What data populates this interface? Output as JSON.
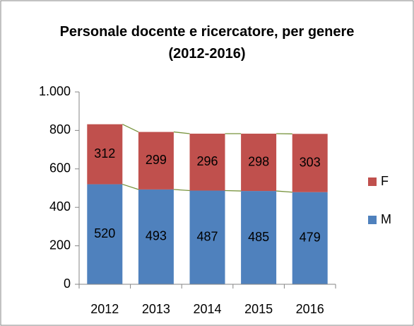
{
  "chart_data": {
    "type": "bar",
    "stacked": true,
    "title": "Personale docente e ricercatore, per genere (2012-2016)",
    "categories": [
      "2012",
      "2013",
      "2014",
      "2015",
      "2016"
    ],
    "series": [
      {
        "name": "M",
        "color": "#4f81bd",
        "values": [
          520,
          493,
          487,
          485,
          479
        ]
      },
      {
        "name": "F",
        "color": "#c0504d",
        "values": [
          312,
          299,
          296,
          298,
          303
        ]
      }
    ],
    "ylim": [
      0,
      1000
    ],
    "yticks": [
      0,
      200,
      400,
      600,
      800,
      {
        "value": 1000,
        "label": "1.000"
      }
    ],
    "series_lines": true,
    "series_line_color": "#77933c",
    "legend": "right",
    "grid": false
  }
}
